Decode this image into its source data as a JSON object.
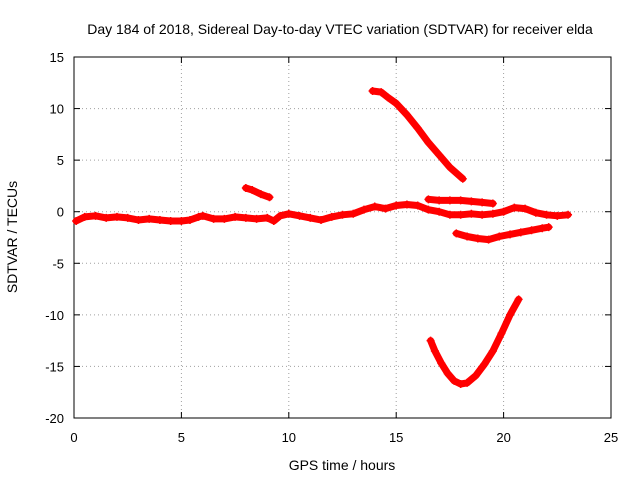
{
  "chart_data": {
    "type": "scatter",
    "title": "Day 184 of 2018, Sidereal Day-to-day VTEC variation (SDTVAR) for receiver elda",
    "xlabel": "GPS time / hours",
    "ylabel": "SDTVAR / TECUs",
    "xlim": [
      0,
      25
    ],
    "ylim": [
      -20,
      15
    ],
    "xticks": [
      0,
      5,
      10,
      15,
      20,
      25
    ],
    "yticks": [
      -20,
      -15,
      -10,
      -5,
      0,
      5,
      10,
      15
    ],
    "grid": true,
    "color": "#ff0000",
    "series": [
      {
        "name": "main-band",
        "points": [
          [
            0.1,
            -0.9
          ],
          [
            0.5,
            -0.5
          ],
          [
            1,
            -0.4
          ],
          [
            1.5,
            -0.6
          ],
          [
            2,
            -0.5
          ],
          [
            2.5,
            -0.6
          ],
          [
            3,
            -0.8
          ],
          [
            3.5,
            -0.7
          ],
          [
            4,
            -0.8
          ],
          [
            4.5,
            -0.9
          ],
          [
            5,
            -0.9
          ],
          [
            5.4,
            -0.8
          ],
          [
            5.8,
            -0.5
          ],
          [
            6,
            -0.4
          ],
          [
            6.5,
            -0.7
          ],
          [
            7,
            -0.7
          ],
          [
            7.5,
            -0.5
          ],
          [
            8,
            -0.6
          ],
          [
            8.5,
            -0.7
          ],
          [
            9,
            -0.6
          ],
          [
            9.3,
            -0.9
          ],
          [
            9.6,
            -0.4
          ],
          [
            10,
            -0.2
          ],
          [
            10.5,
            -0.4
          ],
          [
            11,
            -0.6
          ],
          [
            11.5,
            -0.8
          ],
          [
            12,
            -0.5
          ],
          [
            12.5,
            -0.3
          ],
          [
            13,
            -0.2
          ],
          [
            13.5,
            0.2
          ],
          [
            14,
            0.5
          ],
          [
            14.5,
            0.3
          ],
          [
            15,
            0.6
          ],
          [
            15.5,
            0.7
          ],
          [
            16,
            0.6
          ],
          [
            16.5,
            0.2
          ],
          [
            17,
            0
          ],
          [
            17.5,
            -0.3
          ],
          [
            18,
            -0.3
          ],
          [
            18.5,
            -0.2
          ],
          [
            19,
            -0.3
          ],
          [
            19.5,
            -0.2
          ],
          [
            20,
            0
          ],
          [
            20.5,
            0.4
          ],
          [
            21,
            0.3
          ],
          [
            21.5,
            -0.1
          ],
          [
            22,
            -0.3
          ],
          [
            22.5,
            -0.4
          ],
          [
            23,
            -0.3
          ]
        ]
      },
      {
        "name": "short-segment-8h",
        "points": [
          [
            8,
            2.3
          ],
          [
            8.3,
            2.1
          ],
          [
            8.7,
            1.7
          ],
          [
            9.1,
            1.4
          ]
        ]
      },
      {
        "name": "descending-arc",
        "points": [
          [
            13.9,
            11.7
          ],
          [
            14.3,
            11.6
          ],
          [
            14.6,
            11.1
          ],
          [
            15,
            10.5
          ],
          [
            15.5,
            9.4
          ],
          [
            16,
            8.1
          ],
          [
            16.5,
            6.7
          ],
          [
            17,
            5.5
          ],
          [
            17.5,
            4.3
          ],
          [
            18.1,
            3.2
          ]
        ]
      },
      {
        "name": "upper-branch-17h",
        "points": [
          [
            16.5,
            1.2
          ],
          [
            17,
            1.1
          ],
          [
            17.5,
            1.1
          ],
          [
            18,
            1.1
          ],
          [
            18.5,
            1
          ],
          [
            19,
            0.9
          ],
          [
            19.5,
            0.8
          ]
        ]
      },
      {
        "name": "lower-branch-18h",
        "points": [
          [
            17.8,
            -2.1
          ],
          [
            18.3,
            -2.4
          ],
          [
            18.8,
            -2.6
          ],
          [
            19.3,
            -2.7
          ],
          [
            19.8,
            -2.4
          ],
          [
            20.3,
            -2.2
          ],
          [
            20.8,
            -2
          ],
          [
            21.3,
            -1.8
          ],
          [
            21.8,
            -1.6
          ],
          [
            22.1,
            -1.5
          ]
        ]
      },
      {
        "name": "u-shaped-dip",
        "points": [
          [
            16.6,
            -12.5
          ],
          [
            16.8,
            -13.5
          ],
          [
            17.1,
            -14.7
          ],
          [
            17.4,
            -15.7
          ],
          [
            17.7,
            -16.4
          ],
          [
            18,
            -16.7
          ],
          [
            18.3,
            -16.6
          ],
          [
            18.7,
            -15.9
          ],
          [
            19.1,
            -14.8
          ],
          [
            19.5,
            -13.5
          ],
          [
            19.9,
            -11.8
          ],
          [
            20.3,
            -10
          ],
          [
            20.7,
            -8.5
          ]
        ]
      }
    ]
  }
}
